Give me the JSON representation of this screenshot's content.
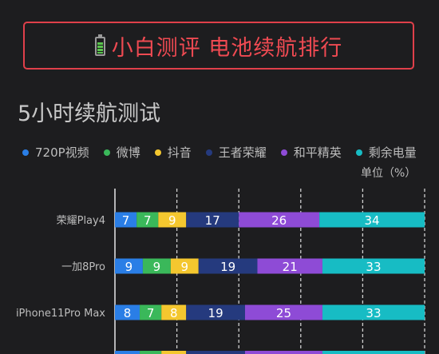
{
  "banner": {
    "title": "小白测评  电池续航排行",
    "icon": "battery-icon"
  },
  "title": "5小时续航测试",
  "unit": "单位（%）",
  "colors": {
    "720P视频": "#2a7ee6",
    "微博": "#3ab85a",
    "抖音": "#f4c72f",
    "王者荣耀": "#253a7e",
    "和平精英": "#8e4bd6",
    "剩余电量": "#17bcc4"
  },
  "chart_data": {
    "type": "bar",
    "stacked": true,
    "orientation": "horizontal",
    "categories": [
      "荣耀Play4",
      "一加8Pro",
      "iPhone11Pro Max"
    ],
    "series": [
      {
        "name": "720P视频",
        "values": [
          7,
          9,
          8
        ]
      },
      {
        "name": "微博",
        "values": [
          7,
          9,
          7
        ]
      },
      {
        "name": "抖音",
        "values": [
          9,
          9,
          8
        ]
      },
      {
        "name": "王者荣耀",
        "values": [
          17,
          19,
          19
        ]
      },
      {
        "name": "和平精英",
        "values": [
          26,
          21,
          25
        ]
      },
      {
        "name": "剩余电量",
        "values": [
          34,
          33,
          33
        ]
      }
    ],
    "xlim": [
      0,
      100
    ],
    "legend_position": "top"
  }
}
